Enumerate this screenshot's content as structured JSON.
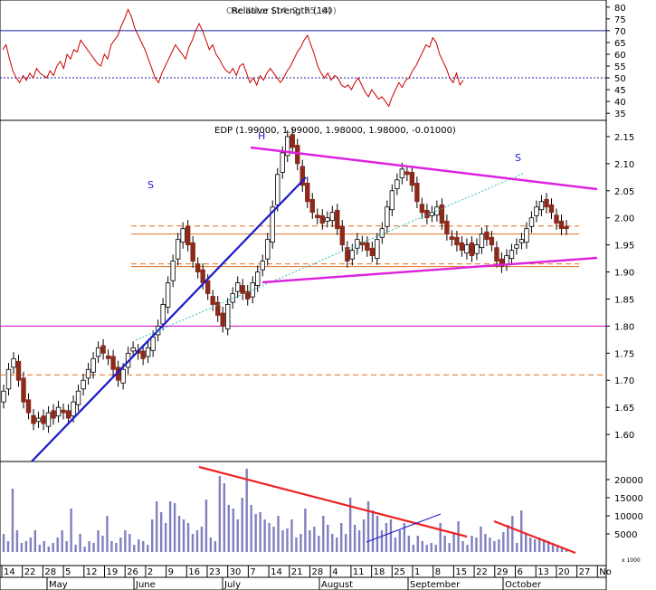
{
  "chart_data": [
    {
      "type": "line",
      "panel": "rsi",
      "header_label_1": "Relative Strength (14)",
      "header_label_2": "Oscillator (14, 2, 75, 60)",
      "yticks": [
        35,
        40,
        45,
        50,
        55,
        60,
        65,
        70,
        75,
        80
      ],
      "ylim": [
        32,
        83
      ],
      "reference_lines": [
        {
          "value": 70,
          "style": "solid"
        },
        {
          "value": 50,
          "style": "dotted"
        }
      ],
      "series": [
        {
          "values": [
            62,
            64,
            58,
            53,
            50,
            48,
            51,
            49,
            52,
            50,
            54,
            52,
            51,
            50,
            53,
            51,
            55,
            57,
            54,
            60,
            58,
            62,
            61,
            66,
            64,
            62,
            60,
            58,
            56,
            55,
            60,
            58,
            64,
            66,
            68,
            72,
            75,
            79,
            76,
            71,
            68,
            65,
            62,
            58,
            54,
            50,
            48,
            52,
            55,
            58,
            61,
            64,
            62,
            60,
            58,
            63,
            66,
            70,
            73,
            70,
            66,
            62,
            64,
            60,
            58,
            55,
            53,
            52,
            54,
            51,
            55,
            56,
            52,
            48,
            50,
            47,
            51,
            49,
            52,
            54,
            52,
            50,
            48,
            50,
            53,
            55,
            58,
            61,
            63,
            66,
            68,
            64,
            60,
            55,
            52,
            50,
            52,
            49,
            51,
            50,
            47,
            46,
            47,
            45,
            48,
            50,
            47,
            44,
            42,
            45,
            43,
            41,
            42,
            40,
            38,
            42,
            45,
            48,
            46,
            49,
            50,
            53,
            55,
            58,
            61,
            64,
            63,
            67,
            65,
            60,
            57,
            54,
            50,
            48,
            52,
            47,
            49
          ],
          "color": "#cc0000"
        }
      ]
    },
    {
      "type": "candlestick",
      "panel": "price",
      "title": "EDP (1.99000, 1.99000, 1.98000, 1.98000, -0.01000)",
      "yticks": [
        1.6,
        1.65,
        1.7,
        1.75,
        1.8,
        1.85,
        1.9,
        1.95,
        2.0,
        2.05,
        2.1,
        2.15
      ],
      "ytick_labels": [
        "1.60",
        "1.65",
        "1.70",
        "1.75",
        "1.80",
        "1.85",
        "1.90",
        "1.95",
        "2.00",
        "2.05",
        "2.10",
        "2.15"
      ],
      "ylim": [
        1.55,
        2.18
      ],
      "closes": [
        1.68,
        1.72,
        1.74,
        1.7,
        1.66,
        1.64,
        1.62,
        1.63,
        1.62,
        1.64,
        1.63,
        1.65,
        1.64,
        1.63,
        1.66,
        1.68,
        1.7,
        1.72,
        1.74,
        1.76,
        1.75,
        1.74,
        1.72,
        1.7,
        1.72,
        1.75,
        1.76,
        1.75,
        1.74,
        1.76,
        1.78,
        1.8,
        1.84,
        1.88,
        1.92,
        1.96,
        1.98,
        1.95,
        1.92,
        1.9,
        1.88,
        1.86,
        1.84,
        1.82,
        1.8,
        1.84,
        1.86,
        1.88,
        1.86,
        1.85,
        1.88,
        1.9,
        1.92,
        1.96,
        2.02,
        2.08,
        2.12,
        2.15,
        2.13,
        2.1,
        2.06,
        2.03,
        2.01,
        2.0,
        1.99,
        2.0,
        2.01,
        1.98,
        1.95,
        1.92,
        1.94,
        1.96,
        1.95,
        1.94,
        1.93,
        1.96,
        1.98,
        2.02,
        2.05,
        2.07,
        2.09,
        2.08,
        2.06,
        2.03,
        2.01,
        2.0,
        2.01,
        2.02,
        1.99,
        1.97,
        1.96,
        1.95,
        1.94,
        1.95,
        1.93,
        1.95,
        1.97,
        1.96,
        1.95,
        1.92,
        1.91,
        1.93,
        1.94,
        1.95,
        1.96,
        1.98,
        2.0,
        2.02,
        2.03,
        2.02,
        2.01,
        1.99,
        1.98,
        1.98
      ],
      "horizontal_levels": [
        {
          "value": 1.8,
          "color": "#cc00cc",
          "style": "solid"
        },
        {
          "value": 1.71,
          "color": "#e07020",
          "style": "dashed"
        },
        {
          "value": 1.985,
          "color": "#e07020",
          "style": "dashed"
        },
        {
          "value": 1.97,
          "color": "#e07020",
          "style": "solid"
        },
        {
          "value": 1.915,
          "color": "#e07020",
          "style": "dashed"
        },
        {
          "value": 1.91,
          "color": "#e07020",
          "style": "solid"
        }
      ],
      "annotations": [
        "S",
        "H",
        "S"
      ],
      "up_color": "#ffffff",
      "down_color": "#8b2a1a",
      "trendline_color": "#1a1acc",
      "triangle_color": "#dd22dd"
    },
    {
      "type": "bar",
      "panel": "volume",
      "volume_label": "x 1000",
      "yticks": [
        5000,
        10000,
        15000,
        20000
      ],
      "ytick_labels": [
        "5000",
        "10000",
        "15000",
        "20000"
      ],
      "ylim": [
        0,
        25000
      ],
      "values": [
        5000,
        3000,
        17500,
        6000,
        2500,
        3000,
        4000,
        6000,
        2000,
        3000,
        1500,
        2500,
        4000,
        6000,
        3000,
        12000,
        2000,
        5000,
        1500,
        3000,
        2500,
        6000,
        4500,
        10000,
        3000,
        2500,
        4000,
        6000,
        5000,
        2000,
        3500,
        3000,
        2000,
        9000,
        14000,
        11000,
        8000,
        14000,
        13500,
        10000,
        9000,
        8000,
        5000,
        6000,
        7000,
        14500,
        4000,
        3000,
        21000,
        19000,
        13000,
        12000,
        9000,
        15000,
        23000,
        13000,
        10500,
        11000,
        9000,
        8000,
        7000,
        10000,
        6000,
        6500,
        9000,
        4000,
        5000,
        12000,
        6000,
        7000,
        4500,
        10000,
        7500,
        5000,
        4000,
        8000,
        5000,
        15000,
        7500,
        6000,
        9000,
        14000,
        11500,
        10000,
        6000,
        8000,
        9000,
        4000,
        6000,
        8000,
        4500,
        2000,
        4500,
        3000,
        2000,
        2500,
        2000,
        8000,
        4500,
        2500,
        5000,
        8500,
        3000,
        2000,
        4500,
        4000,
        7000,
        5000,
        4000,
        3000,
        3500,
        5500,
        7500,
        10000,
        2500,
        11500,
        5000,
        4000,
        3500,
        4000,
        3500,
        3000,
        2500,
        2000,
        1500,
        1000
      ],
      "bar_color": "#8080c0",
      "trendline_color": "#ee2222"
    }
  ],
  "x_axis": {
    "day_labels": [
      "14",
      "22",
      "28",
      "5",
      "12",
      "19",
      "26",
      "2",
      "9",
      "16",
      "23",
      "30",
      "7",
      "14",
      "21",
      "28",
      "4",
      "11",
      "18",
      "25",
      "1",
      "8",
      "15",
      "22",
      "29",
      "6",
      "13",
      "20",
      "27",
      "No"
    ],
    "month_labels": [
      "May",
      "June",
      "July",
      "August",
      "September",
      "October"
    ]
  }
}
